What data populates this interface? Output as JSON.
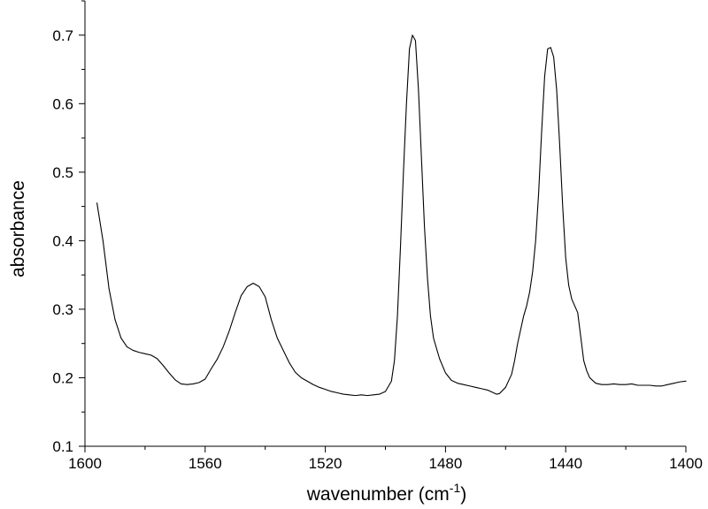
{
  "chart_data": {
    "type": "line",
    "title": "",
    "xlabel": "wavenumber (cm",
    "xlabel_superscript": "-1",
    "xlabel_suffix": ")",
    "ylabel": "absorbance",
    "xlim": [
      1600,
      1400
    ],
    "x_reversed": true,
    "ylim": [
      0.1,
      0.75
    ],
    "x_ticks": [
      1600,
      1560,
      1520,
      1480,
      1440,
      1400
    ],
    "y_ticks": [
      0.1,
      0.2,
      0.3,
      0.4,
      0.5,
      0.6,
      0.7
    ],
    "y_tick_labels": [
      "0.1",
      "0.2",
      "0.3",
      "0.4",
      "0.5",
      "0.6",
      "0.7"
    ],
    "grid": false,
    "legend": "none",
    "line_color": "#000000",
    "series": [
      {
        "x": [
          1596,
          1594,
          1592,
          1590,
          1588,
          1586,
          1584,
          1582,
          1580,
          1578,
          1576,
          1574,
          1572,
          1570,
          1568,
          1566,
          1564,
          1562,
          1560,
          1558,
          1556,
          1554,
          1552,
          1550,
          1548,
          1546,
          1544,
          1542,
          1540,
          1538,
          1536,
          1534,
          1532,
          1530,
          1528,
          1526,
          1524,
          1522,
          1520,
          1518,
          1516,
          1514,
          1512,
          1510,
          1508,
          1506,
          1504,
          1502,
          1500,
          1498,
          1497,
          1496,
          1495,
          1494,
          1493,
          1492,
          1491,
          1490,
          1489,
          1488,
          1487,
          1486,
          1485,
          1484,
          1482,
          1480,
          1478,
          1476,
          1474,
          1472,
          1470,
          1468,
          1466,
          1464,
          1463,
          1462,
          1460,
          1458,
          1457,
          1456,
          1454,
          1453,
          1452,
          1451,
          1450,
          1449,
          1448,
          1447,
          1446,
          1445,
          1444,
          1443,
          1442,
          1441,
          1440,
          1439,
          1438,
          1437,
          1436,
          1435,
          1434,
          1433,
          1432,
          1430,
          1428,
          1426,
          1424,
          1422,
          1420,
          1418,
          1416,
          1414,
          1412,
          1410,
          1408,
          1406,
          1404,
          1402,
          1400
        ],
        "y": [
          0.455,
          0.4,
          0.33,
          0.285,
          0.258,
          0.245,
          0.24,
          0.237,
          0.235,
          0.233,
          0.228,
          0.218,
          0.207,
          0.197,
          0.191,
          0.19,
          0.191,
          0.193,
          0.198,
          0.213,
          0.227,
          0.245,
          0.268,
          0.295,
          0.32,
          0.333,
          0.338,
          0.333,
          0.318,
          0.285,
          0.258,
          0.24,
          0.222,
          0.208,
          0.2,
          0.195,
          0.19,
          0.186,
          0.183,
          0.18,
          0.178,
          0.176,
          0.175,
          0.174,
          0.175,
          0.174,
          0.175,
          0.176,
          0.18,
          0.195,
          0.225,
          0.29,
          0.39,
          0.5,
          0.6,
          0.68,
          0.7,
          0.692,
          0.62,
          0.52,
          0.42,
          0.345,
          0.29,
          0.258,
          0.228,
          0.207,
          0.196,
          0.192,
          0.19,
          0.188,
          0.186,
          0.184,
          0.182,
          0.178,
          0.176,
          0.177,
          0.186,
          0.205,
          0.225,
          0.25,
          0.29,
          0.305,
          0.325,
          0.355,
          0.4,
          0.47,
          0.56,
          0.64,
          0.68,
          0.682,
          0.668,
          0.62,
          0.54,
          0.45,
          0.375,
          0.335,
          0.315,
          0.305,
          0.295,
          0.26,
          0.225,
          0.21,
          0.2,
          0.192,
          0.19,
          0.19,
          0.191,
          0.19,
          0.19,
          0.191,
          0.189,
          0.189,
          0.189,
          0.188,
          0.188,
          0.19,
          0.192,
          0.194,
          0.195
        ]
      }
    ]
  }
}
